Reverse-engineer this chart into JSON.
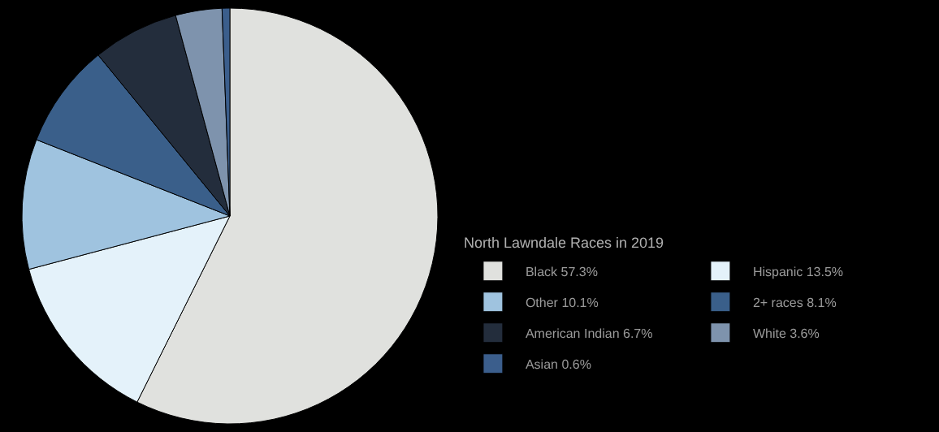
{
  "chart_data": {
    "type": "pie",
    "legend_title": "North Lawndale Races in 2019",
    "categories": [
      "Black 57.3%",
      "Hispanic 13.5%",
      "Other 10.1%",
      "2+ races 8.1%",
      "American Indian 6.7%",
      "White 3.6%",
      "Asian 0.6%"
    ],
    "values": [
      57.3,
      13.5,
      10.1,
      8.1,
      6.7,
      3.6,
      0.6
    ],
    "colors": [
      "#e0e1de",
      "#e4f2fa",
      "#9fc3df",
      "#3a5f8a",
      "#232d3c",
      "#7e93ad",
      "#3b5e8c"
    ],
    "legend": "right"
  }
}
